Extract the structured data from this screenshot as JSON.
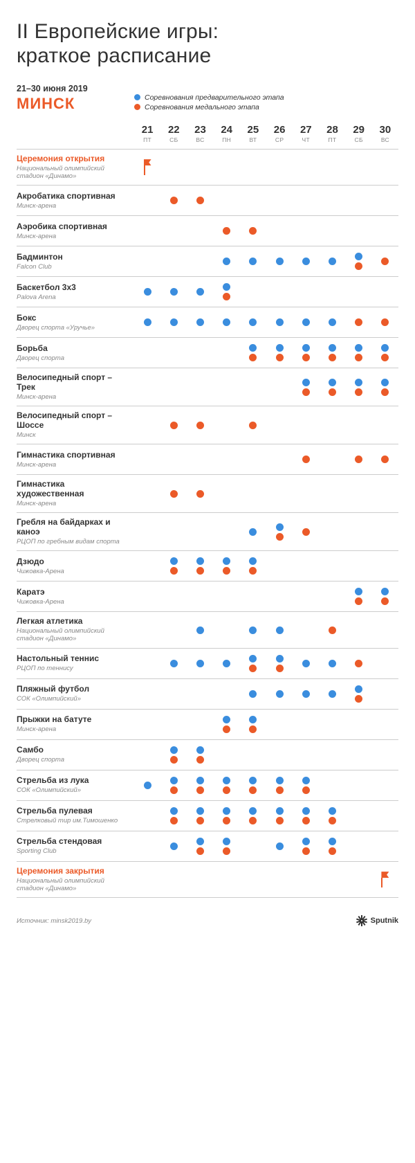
{
  "title": "II Европейские игры:\nкраткое расписание",
  "dates_label": "21–30 июня 2019",
  "city": "МИНСК",
  "legend": {
    "prelim": {
      "label": "Соревнования предварительного этапа",
      "color": "#3a8dde"
    },
    "medal": {
      "label": "Соревнования медального этапа",
      "color": "#eb5a28"
    }
  },
  "colors": {
    "prelim": "#3a8dde",
    "medal": "#eb5a28",
    "border": "#cccccc",
    "text": "#333333",
    "muted": "#888888",
    "bg": "#ffffff"
  },
  "days": [
    {
      "n": "21",
      "w": "ПТ"
    },
    {
      "n": "22",
      "w": "СБ"
    },
    {
      "n": "23",
      "w": "ВС"
    },
    {
      "n": "24",
      "w": "ПН"
    },
    {
      "n": "25",
      "w": "ВТ"
    },
    {
      "n": "26",
      "w": "СР"
    },
    {
      "n": "27",
      "w": "ЧТ"
    },
    {
      "n": "28",
      "w": "ПТ"
    },
    {
      "n": "29",
      "w": "СБ"
    },
    {
      "n": "30",
      "w": "ВС"
    }
  ],
  "rows": [
    {
      "name": "Церемония открытия",
      "venue": "Национальный олимпийский стадион «Динамо»",
      "ceremony": true,
      "cells": [
        "flag",
        "",
        "",
        "",
        "",
        "",
        "",
        "",
        "",
        ""
      ]
    },
    {
      "name": "Акробатика спортивная",
      "venue": "Минск-арена",
      "cells": [
        "",
        "m",
        "m",
        "",
        "",
        "",
        "",
        "",
        "",
        ""
      ]
    },
    {
      "name": "Аэробика спортивная",
      "venue": "Минск-арена",
      "cells": [
        "",
        "",
        "",
        "m",
        "m",
        "",
        "",
        "",
        "",
        ""
      ]
    },
    {
      "name": "Бадминтон",
      "venue": "Falcon Club",
      "cells": [
        "",
        "",
        "",
        "p",
        "p",
        "p",
        "p",
        "p",
        "pm",
        "m"
      ]
    },
    {
      "name": "Баскетбол 3х3",
      "venue": "Palova Arena",
      "cells": [
        "p",
        "p",
        "p",
        "pm",
        "",
        "",
        "",
        "",
        "",
        ""
      ]
    },
    {
      "name": "Бокс",
      "venue": "Дворец спорта «Уручье»",
      "cells": [
        "p",
        "p",
        "p",
        "p",
        "p",
        "p",
        "p",
        "p",
        "m",
        "m"
      ]
    },
    {
      "name": "Борьба",
      "venue": "Дворец спорта",
      "cells": [
        "",
        "",
        "",
        "",
        "pm",
        "pm",
        "pm",
        "pm",
        "pm",
        "pm"
      ]
    },
    {
      "name": "Велосипедный спорт – Трек",
      "venue": "Минск-арена",
      "cells": [
        "",
        "",
        "",
        "",
        "",
        "",
        "pm",
        "pm",
        "pm",
        "pm"
      ]
    },
    {
      "name": "Велосипедный спорт – Шоссе",
      "venue": "Минск",
      "cells": [
        "",
        "m",
        "m",
        "",
        "m",
        "",
        "",
        "",
        "",
        ""
      ]
    },
    {
      "name": "Гимнастика спортивная",
      "venue": "Минск-арена",
      "cells": [
        "",
        "",
        "",
        "",
        "",
        "",
        "m",
        "",
        "m",
        "m"
      ]
    },
    {
      "name": "Гимнастика художественная",
      "venue": "Минск-арена",
      "cells": [
        "",
        "m",
        "m",
        "",
        "",
        "",
        "",
        "",
        "",
        ""
      ]
    },
    {
      "name": "Гребля на байдарках и каноэ",
      "venue": "РЦОП по гребным видам спорта",
      "cells": [
        "",
        "",
        "",
        "",
        "p",
        "pm",
        "m",
        "",
        "",
        ""
      ]
    },
    {
      "name": "Дзюдо",
      "venue": "Чижовка-Арена",
      "cells": [
        "",
        "pm",
        "pm",
        "pm",
        "pm",
        "",
        "",
        "",
        "",
        ""
      ]
    },
    {
      "name": "Каратэ",
      "venue": "Чижовка-Арена",
      "cells": [
        "",
        "",
        "",
        "",
        "",
        "",
        "",
        "",
        "pm",
        "pm"
      ]
    },
    {
      "name": "Легкая атлетика",
      "venue": "Национальный олимпийский стадион «Динамо»",
      "cells": [
        "",
        "",
        "p",
        "",
        "p",
        "p",
        "",
        "m",
        "",
        ""
      ]
    },
    {
      "name": "Настольный теннис",
      "venue": "РЦОП по теннису",
      "cells": [
        "",
        "p",
        "p",
        "p",
        "pm",
        "pm",
        "p",
        "p",
        "m",
        ""
      ]
    },
    {
      "name": "Пляжный футбол",
      "venue": "СОК «Олимпийский»",
      "cells": [
        "",
        "",
        "",
        "",
        "p",
        "p",
        "p",
        "p",
        "pm",
        ""
      ]
    },
    {
      "name": "Прыжки на батуте",
      "venue": "Минск-арена",
      "cells": [
        "",
        "",
        "",
        "pm",
        "pm",
        "",
        "",
        "",
        "",
        ""
      ]
    },
    {
      "name": "Самбо",
      "venue": "Дворец спорта",
      "cells": [
        "",
        "pm",
        "pm",
        "",
        "",
        "",
        "",
        "",
        "",
        ""
      ]
    },
    {
      "name": "Стрельба из лука",
      "venue": "СОК «Олимпийский»",
      "cells": [
        "p",
        "pm",
        "pm",
        "pm",
        "pm",
        "pm",
        "pm",
        "",
        "",
        ""
      ]
    },
    {
      "name": "Стрельба пулевая",
      "venue": "Стрелковый тир им.Тимошенко",
      "cells": [
        "",
        "pm",
        "pm",
        "pm",
        "pm",
        "pm",
        "pm",
        "pm",
        "",
        ""
      ]
    },
    {
      "name": "Стрельба стендовая",
      "venue": "Sporting Club",
      "cells": [
        "",
        "p",
        "pm",
        "pm",
        "",
        "p",
        "pm",
        "pm",
        "",
        ""
      ]
    },
    {
      "name": "Церемония закрытия",
      "venue": "Национальный олимпийский стадион «Динамо»",
      "ceremony": true,
      "cells": [
        "",
        "",
        "",
        "",
        "",
        "",
        "",
        "",
        "",
        "flag"
      ]
    }
  ],
  "source_label": "Источник: minsk2019.by",
  "brand": "Sputnik"
}
